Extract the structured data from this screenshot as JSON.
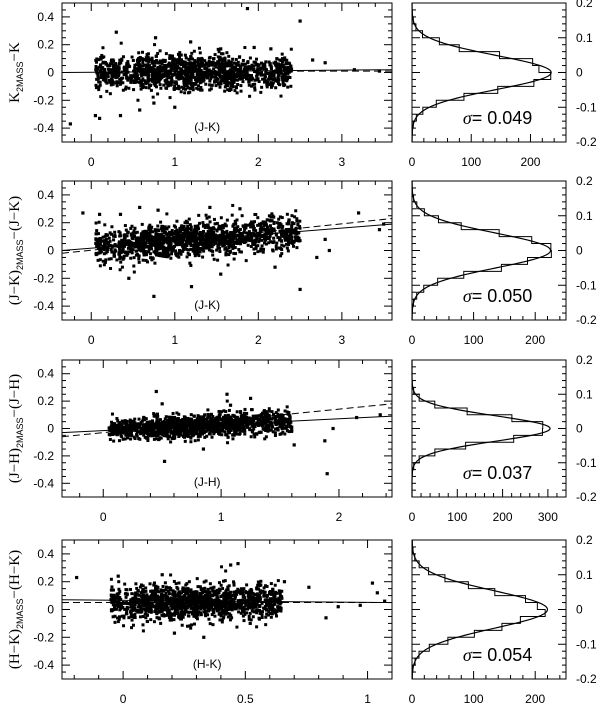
{
  "chart_data": [
    {
      "type": "scatter",
      "panel": "row1-left",
      "title": "",
      "ylabel": "K_2MASS - K",
      "xlabel": "(J-K)",
      "xlim": [
        -0.35,
        3.6
      ],
      "ylim": [
        -0.5,
        0.5
      ],
      "xticks": [
        0,
        1,
        2,
        3
      ],
      "yticks": [
        -0.4,
        -0.2,
        0,
        0.2,
        0.4
      ],
      "fit_solid": {
        "x": [
          -0.35,
          3.6
        ],
        "y": [
          0.0,
          0.02
        ]
      },
      "fit_dashed": {
        "x": [
          2.2,
          3.6
        ],
        "y": [
          0.01,
          0.01
        ]
      },
      "cloud": {
        "x_range": [
          0.05,
          2.4
        ],
        "y_center": 0.0,
        "y_spread": 0.06
      },
      "outliers": [
        [
          -0.25,
          -0.37
        ],
        [
          0.05,
          -0.31
        ],
        [
          0.1,
          -0.33
        ],
        [
          0.35,
          -0.31
        ],
        [
          0.58,
          -0.27
        ],
        [
          0.75,
          -0.22
        ],
        [
          1.0,
          -0.25
        ],
        [
          0.3,
          0.29
        ],
        [
          0.77,
          0.25
        ],
        [
          1.19,
          0.22
        ],
        [
          1.87,
          0.46
        ],
        [
          2.5,
          0.37
        ],
        [
          1.95,
          0.18
        ],
        [
          2.15,
          0.17
        ],
        [
          1.55,
          0.17
        ],
        [
          2.65,
          0.09
        ],
        [
          2.8,
          0.07
        ],
        [
          3.15,
          0.02
        ],
        [
          3.45,
          0.01
        ]
      ]
    },
    {
      "type": "bar",
      "orientation": "horizontal-histogram",
      "panel": "row1-right",
      "xlim": [
        0,
        260
      ],
      "ylim": [
        -0.2,
        0.2
      ],
      "xticks": [
        0,
        100,
        200
      ],
      "yticks": [
        -0.2,
        -0.1,
        0,
        0.1,
        0.2
      ],
      "annotation": "σ= 0.049",
      "sigma": 0.049,
      "mean": 0.0,
      "peak": 235
    },
    {
      "type": "scatter",
      "panel": "row2-left",
      "ylabel": "(J-K)_2MASS - (J-K)",
      "xlabel": "(J-K)",
      "xlim": [
        -0.35,
        3.6
      ],
      "ylim": [
        -0.5,
        0.5
      ],
      "xticks": [
        0,
        1,
        2,
        3
      ],
      "yticks": [
        -0.4,
        -0.2,
        0,
        0.2,
        0.4
      ],
      "fit_solid": {
        "x": [
          -0.35,
          3.6
        ],
        "y": [
          0.0,
          0.19
        ]
      },
      "fit_dashed": {
        "x": [
          -0.35,
          3.6
        ],
        "y": [
          -0.02,
          0.23
        ]
      },
      "cloud": {
        "x_range": [
          0.05,
          2.5
        ],
        "y_center_start": 0.03,
        "y_center_end": 0.13,
        "y_spread": 0.06
      },
      "outliers": [
        [
          -0.1,
          0.27
        ],
        [
          0.1,
          0.26
        ],
        [
          0.35,
          0.26
        ],
        [
          0.58,
          0.31
        ],
        [
          0.8,
          0.29
        ],
        [
          1.42,
          0.31
        ],
        [
          1.78,
          0.3
        ],
        [
          0.75,
          -0.33
        ],
        [
          1.2,
          -0.26
        ],
        [
          1.55,
          -0.17
        ],
        [
          2.5,
          -0.28
        ],
        [
          0.45,
          -0.2
        ],
        [
          2.2,
          -0.12
        ],
        [
          2.7,
          -0.05
        ],
        [
          2.85,
          0.0
        ],
        [
          2.8,
          0.08
        ],
        [
          3.2,
          0.27
        ],
        [
          3.45,
          0.15
        ],
        [
          3.5,
          0.19
        ]
      ]
    },
    {
      "type": "bar",
      "orientation": "horizontal-histogram",
      "panel": "row2-right",
      "xlim": [
        0,
        250
      ],
      "ylim": [
        -0.2,
        0.2
      ],
      "xticks": [
        0,
        100,
        200
      ],
      "yticks": [
        -0.2,
        -0.1,
        0,
        0.1,
        0.2
      ],
      "annotation": "σ= 0.050",
      "sigma": 0.05,
      "mean": 0.0,
      "peak": 225
    },
    {
      "type": "scatter",
      "panel": "row3-left",
      "ylabel": "(J-H)_2MASS - (J-H)",
      "xlabel": "(J-H)",
      "xlim": [
        -0.35,
        2.45
      ],
      "ylim": [
        -0.5,
        0.5
      ],
      "xticks": [
        0,
        1,
        2
      ],
      "yticks": [
        -0.4,
        -0.2,
        0,
        0.2,
        0.4
      ],
      "fit_solid": {
        "x": [
          -0.35,
          2.45
        ],
        "y": [
          -0.03,
          0.09
        ]
      },
      "fit_dashed": {
        "x": [
          -0.35,
          2.45
        ],
        "y": [
          -0.06,
          0.18
        ]
      },
      "cloud": {
        "x_range": [
          0.05,
          1.6
        ],
        "y_center_start": -0.01,
        "y_center_end": 0.05,
        "y_spread": 0.04
      },
      "outliers": [
        [
          0.45,
          0.27
        ],
        [
          1.05,
          0.25
        ],
        [
          1.25,
          0.22
        ],
        [
          0.5,
          0.18
        ],
        [
          1.08,
          0.17
        ],
        [
          0.52,
          -0.24
        ],
        [
          1.9,
          -0.33
        ],
        [
          1.62,
          -0.12
        ],
        [
          1.88,
          -0.09
        ],
        [
          0.85,
          -0.15
        ],
        [
          2.15,
          0.08
        ],
        [
          2.35,
          0.1
        ],
        [
          1.95,
          0.0
        ]
      ]
    },
    {
      "type": "bar",
      "orientation": "horizontal-histogram",
      "panel": "row3-right",
      "xlim": [
        0,
        340
      ],
      "ylim": [
        -0.2,
        0.2
      ],
      "xticks": [
        0,
        100,
        200,
        300
      ],
      "yticks": [
        -0.2,
        -0.1,
        0,
        0.1,
        0.2
      ],
      "annotation": "σ= 0.037",
      "sigma": 0.037,
      "mean": 0.0,
      "peak": 305
    },
    {
      "type": "scatter",
      "panel": "row4-left",
      "ylabel": "(H-K)_2MASS - (H-K)",
      "xlabel": "(H-K)",
      "xlim": [
        -0.25,
        1.1
      ],
      "ylim": [
        -0.5,
        0.5
      ],
      "xticks": [
        0,
        0.5,
        1
      ],
      "yticks": [
        -0.4,
        -0.2,
        0,
        0.2,
        0.4
      ],
      "fit_solid": {
        "x": [
          -0.25,
          1.1
        ],
        "y": [
          0.07,
          0.05
        ]
      },
      "fit_dashed": {
        "x": [
          -0.25,
          1.1
        ],
        "y": [
          0.05,
          0.05
        ]
      },
      "cloud": {
        "x_range": [
          -0.05,
          0.65
        ],
        "y_center": 0.05,
        "y_spread": 0.06
      },
      "outliers": [
        [
          -0.19,
          0.23
        ],
        [
          -0.02,
          0.24
        ],
        [
          0.16,
          0.25
        ],
        [
          0.44,
          0.32
        ],
        [
          0.47,
          0.33
        ],
        [
          1.02,
          0.19
        ],
        [
          1.04,
          0.12
        ],
        [
          1.07,
          0.06
        ],
        [
          0.83,
          -0.06
        ],
        [
          0.88,
          0.02
        ],
        [
          0.97,
          0.03
        ],
        [
          0.33,
          -0.2
        ],
        [
          0.21,
          -0.17
        ],
        [
          0.52,
          -0.1
        ],
        [
          0.76,
          0.16
        ],
        [
          0.66,
          0.2
        ]
      ]
    },
    {
      "type": "bar",
      "orientation": "horizontal-histogram",
      "panel": "row4-right",
      "xlim": [
        0,
        250
      ],
      "ylim": [
        -0.2,
        0.2
      ],
      "xticks": [
        0,
        100,
        200
      ],
      "yticks": [
        -0.2,
        -0.1,
        0,
        0.1,
        0.2
      ],
      "annotation": "σ= 0.054",
      "sigma": 0.054,
      "mean": 0.0,
      "peak": 220
    }
  ]
}
